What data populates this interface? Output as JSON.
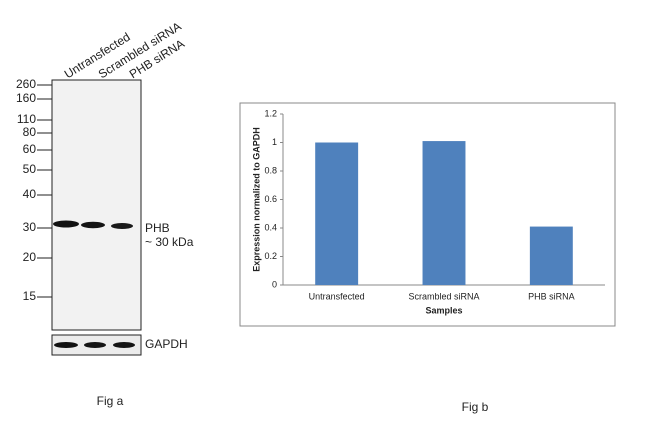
{
  "blot": {
    "lanes": [
      "Untransfected",
      "Scrambled siRNA",
      "PHB siRNA"
    ],
    "markers": [
      "260",
      "160",
      "110",
      "80",
      "60",
      "50",
      "40",
      "30",
      "20",
      "15"
    ],
    "target": "PHB",
    "target_size": "~ 30 kDa",
    "loading_control": "GAPDH",
    "caption": "Fig a"
  },
  "chart_data": {
    "type": "bar",
    "categories": [
      "Untransfected",
      "Scrambled siRNA",
      "PHB siRNA"
    ],
    "values": [
      1.0,
      1.01,
      0.41
    ],
    "color": "#4f81bd",
    "xlabel": "Samples",
    "ylabel": "Expression normalized to GAPDH",
    "ylim": [
      0,
      1.2
    ],
    "yticks": [
      0,
      0.2,
      0.4,
      0.6,
      0.8,
      1,
      1.2
    ],
    "grid": false,
    "caption": "Fig b"
  }
}
